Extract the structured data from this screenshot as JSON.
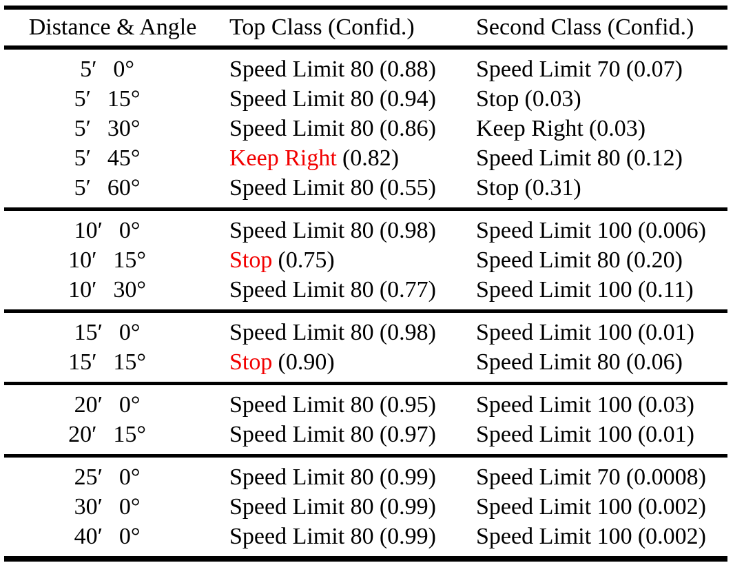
{
  "table": {
    "columns": [
      {
        "label": "Distance & Angle"
      },
      {
        "label": "Top Class (Confid.)"
      },
      {
        "label": "Second Class (Confid.)"
      }
    ],
    "colors": {
      "misclassified": "#f20000",
      "text": "#000000",
      "rule": "#000000"
    },
    "groups": [
      {
        "rows": [
          {
            "label": "5′  0°",
            "top": {
              "cls": "Speed Limit 80",
              "conf": "(0.88)",
              "red": false
            },
            "second": {
              "cls": "Speed Limit 70",
              "conf": "(0.07)"
            }
          },
          {
            "label": "5′  15°",
            "top": {
              "cls": "Speed Limit 80",
              "conf": "(0.94)",
              "red": false
            },
            "second": {
              "cls": "Stop",
              "conf": "(0.03)"
            }
          },
          {
            "label": "5′  30°",
            "top": {
              "cls": "Speed Limit 80",
              "conf": "(0.86)",
              "red": false
            },
            "second": {
              "cls": "Keep Right",
              "conf": "(0.03)"
            }
          },
          {
            "label": "5′  45°",
            "top": {
              "cls": "Keep Right",
              "conf": "(0.82)",
              "red": true
            },
            "second": {
              "cls": "Speed Limit 80",
              "conf": "(0.12)"
            }
          },
          {
            "label": "5′  60°",
            "top": {
              "cls": "Speed Limit 80",
              "conf": "(0.55)",
              "red": false
            },
            "second": {
              "cls": "Stop",
              "conf": "(0.31)"
            }
          }
        ]
      },
      {
        "rows": [
          {
            "label": "10′  0°",
            "top": {
              "cls": "Speed Limit 80",
              "conf": "(0.98)",
              "red": false
            },
            "second": {
              "cls": "Speed Limit 100",
              "conf": "(0.006)"
            }
          },
          {
            "label": "10′  15°",
            "top": {
              "cls": "Stop",
              "conf": "(0.75)",
              "red": true
            },
            "second": {
              "cls": "Speed Limit 80",
              "conf": "(0.20)"
            }
          },
          {
            "label": "10′  30°",
            "top": {
              "cls": "Speed Limit 80",
              "conf": "(0.77)",
              "red": false
            },
            "second": {
              "cls": "Speed Limit 100",
              "conf": "(0.11)"
            }
          }
        ]
      },
      {
        "rows": [
          {
            "label": "15′  0°",
            "top": {
              "cls": "Speed Limit 80",
              "conf": "(0.98)",
              "red": false
            },
            "second": {
              "cls": "Speed Limit 100",
              "conf": "(0.01)"
            }
          },
          {
            "label": "15′  15°",
            "top": {
              "cls": "Stop",
              "conf": "(0.90)",
              "red": true
            },
            "second": {
              "cls": "Speed Limit 80",
              "conf": "(0.06)"
            }
          }
        ]
      },
      {
        "rows": [
          {
            "label": "20′  0°",
            "top": {
              "cls": "Speed Limit 80",
              "conf": "(0.95)",
              "red": false
            },
            "second": {
              "cls": "Speed Limit 100",
              "conf": "(0.03)"
            }
          },
          {
            "label": "20′  15°",
            "top": {
              "cls": "Speed Limit 80",
              "conf": "(0.97)",
              "red": false
            },
            "second": {
              "cls": "Speed Limit 100",
              "conf": "(0.01)"
            }
          }
        ]
      },
      {
        "rows": [
          {
            "label": "25′  0°",
            "top": {
              "cls": "Speed Limit 80",
              "conf": "(0.99)",
              "red": false
            },
            "second": {
              "cls": "Speed Limit 70",
              "conf": "(0.0008)"
            }
          },
          {
            "label": "30′  0°",
            "top": {
              "cls": "Speed Limit 80",
              "conf": "(0.99)",
              "red": false
            },
            "second": {
              "cls": "Speed Limit 100",
              "conf": "(0.002)"
            }
          },
          {
            "label": "40′  0°",
            "top": {
              "cls": "Speed Limit 80",
              "conf": "(0.99)",
              "red": false
            },
            "second": {
              "cls": "Speed Limit 100",
              "conf": "(0.002)"
            }
          }
        ]
      }
    ]
  }
}
